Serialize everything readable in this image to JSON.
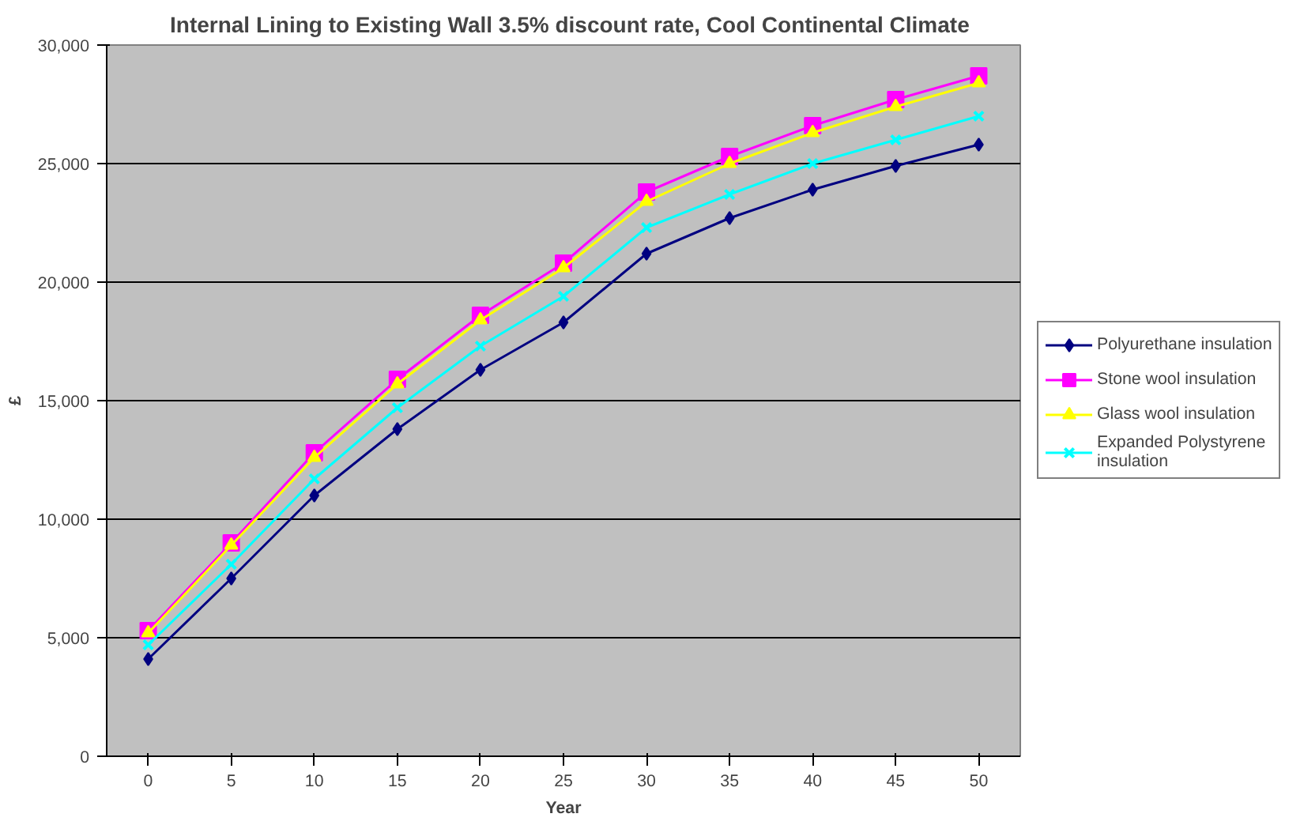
{
  "chart_data": {
    "type": "line",
    "title": "Internal Lining to Existing Wall 3.5% discount rate, Cool Continental Climate",
    "xlabel": "Year",
    "ylabel": "£",
    "categories": [
      "0",
      "5",
      "10",
      "15",
      "20",
      "25",
      "30",
      "35",
      "40",
      "45",
      "50"
    ],
    "series": [
      {
        "name": "Polyurethane insulation",
        "color": "#000080",
        "marker": "diamond",
        "values": [
          4100,
          7500,
          11000,
          13800,
          16300,
          18300,
          21200,
          22700,
          23900,
          24900,
          25800
        ]
      },
      {
        "name": "Stone wool insulation",
        "color": "#ff00ff",
        "marker": "square",
        "values": [
          5300,
          9000,
          12800,
          15900,
          18600,
          20800,
          23800,
          25300,
          26600,
          27700,
          28700
        ]
      },
      {
        "name": "Glass wool insulation",
        "color": "#ffff00",
        "marker": "triangle",
        "values": [
          5200,
          8900,
          12600,
          15700,
          18400,
          20600,
          23400,
          25000,
          26300,
          27400,
          28400
        ]
      },
      {
        "name": "Expanded Polystyrene insulation",
        "color": "#00ffff",
        "marker": "cross",
        "values": [
          4700,
          8100,
          11700,
          14700,
          17300,
          19400,
          22300,
          23700,
          25000,
          26000,
          27000
        ]
      }
    ],
    "ylim": [
      0,
      30000
    ],
    "yticks": [
      {
        "value": 0,
        "label": "0"
      },
      {
        "value": 5000,
        "label": "5,000"
      },
      {
        "value": 10000,
        "label": "10,000"
      },
      {
        "value": 15000,
        "label": "15,000"
      },
      {
        "value": 20000,
        "label": "20,000"
      },
      {
        "value": 25000,
        "label": "25,000"
      },
      {
        "value": 30000,
        "label": "30,000"
      }
    ],
    "grid": "y",
    "legend": "right",
    "line_style": "solid"
  }
}
